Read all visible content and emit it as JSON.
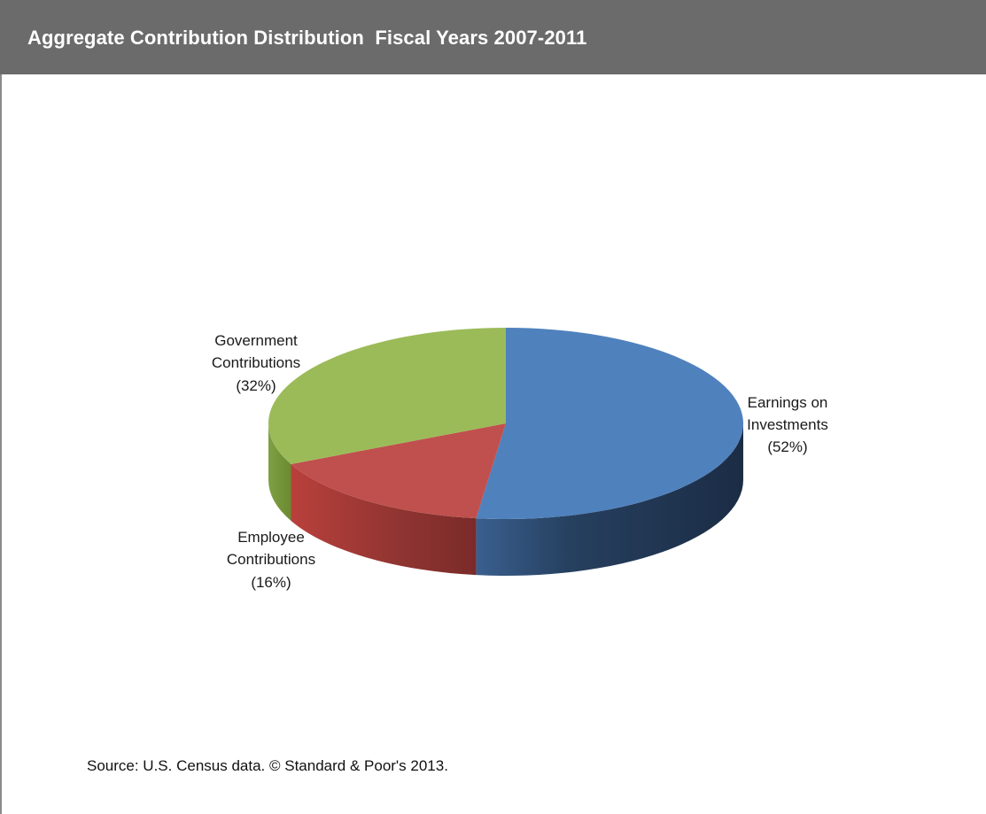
{
  "header": {
    "title": "Aggregate Contribution Distribution  Fiscal Years 2007-2011"
  },
  "chart_data": {
    "type": "pie",
    "title": "Aggregate Contribution Distribution  Fiscal Years 2007-2011",
    "three_d": true,
    "slices": [
      {
        "label": "Earnings on Investments",
        "value": 52,
        "display": "(52%)",
        "color": "#4f81bd",
        "side_color": "#1f3452"
      },
      {
        "label": "Employee Contributions",
        "value": 16,
        "display": "(16%)",
        "color": "#c0504d",
        "side_color": "#7e2a28"
      },
      {
        "label": "Government Contributions",
        "value": 32,
        "display": "(32%)",
        "color": "#9bbb59",
        "side_color": "#6a8a30"
      }
    ],
    "labels": {
      "earnings": {
        "line1": "Earnings on",
        "line2": "Investments",
        "line3": "(52%)"
      },
      "employee": {
        "line1": "Employee",
        "line2": "Contributions",
        "line3": "(16%)"
      },
      "government": {
        "line1": "Government",
        "line2": "Contributions",
        "line3": "(32%)"
      }
    }
  },
  "footer": {
    "source": "Source: U.S. Census data. © Standard & Poor's 2013."
  }
}
